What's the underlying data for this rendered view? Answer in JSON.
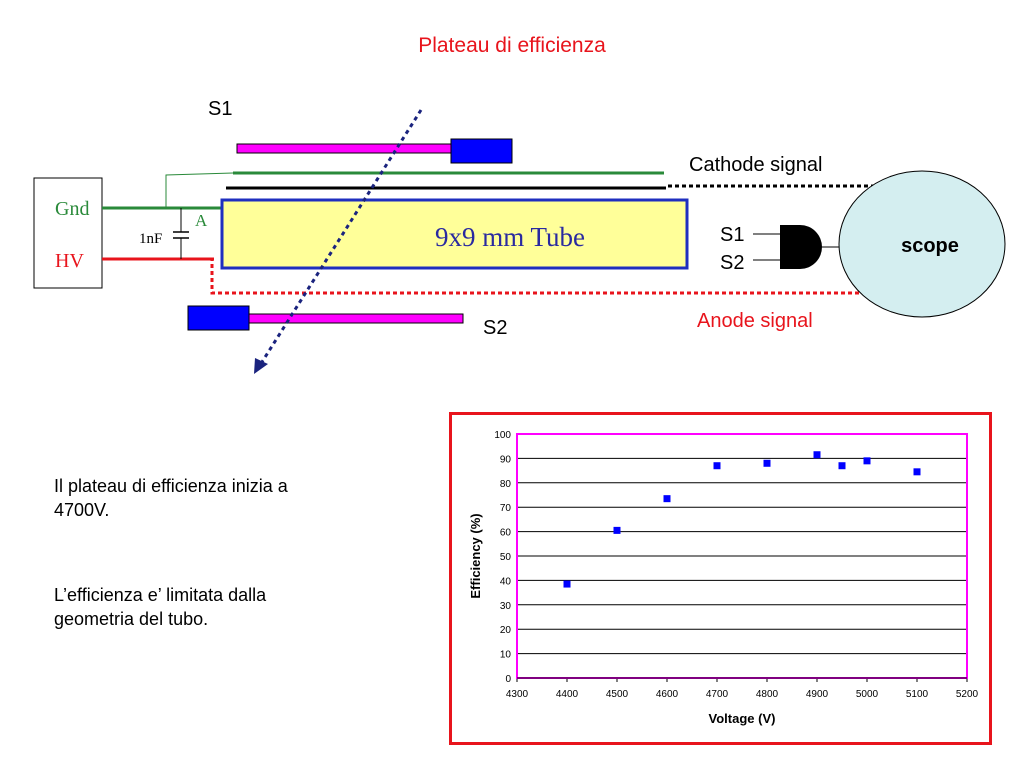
{
  "title": "Plateau di efficienza",
  "diagram": {
    "s1_top": "S1",
    "s2_bottom": "S2",
    "cathode_signal": "Cathode signal",
    "anode_signal": "Anode signal",
    "tube_label": "9x9 mm Tube",
    "gnd": "Gnd",
    "hv": "HV",
    "capacitor": "1nF",
    "anode_point": "A",
    "gate_in1": "S1",
    "gate_in2": "S2",
    "scope": "scope",
    "colors": {
      "title_red": "#e8141c",
      "scintillator": "#ff00ff",
      "pmt": "#0000ff",
      "tube_fill": "#ffff99",
      "tube_border": "#1f2fbf",
      "gnd_line": "#2a8a3a",
      "hv_line": "#e8141c",
      "scope_fill": "#d4eef0",
      "beam": "#1a237e"
    }
  },
  "notes": {
    "line1": "Il plateau di efficienza inizia a",
    "line2": "4700V.",
    "line3": "L’efficienza e’ limitata dalla",
    "line4": "geometria del tubo."
  },
  "chart_data": {
    "type": "scatter",
    "xlabel": "Voltage (V)",
    "ylabel": "Efficiency (%)",
    "xlim": [
      4300,
      5200
    ],
    "ylim": [
      0,
      100
    ],
    "xticks": [
      4300,
      4400,
      4500,
      4600,
      4700,
      4800,
      4900,
      5000,
      5100,
      5200
    ],
    "yticks": [
      0,
      10,
      20,
      30,
      40,
      50,
      60,
      70,
      80,
      90,
      100
    ],
    "grid": "horizontal",
    "plot_border_color": "#ff00ff",
    "marker_color": "#0000ff",
    "points": [
      {
        "x": 4400,
        "y": 38.5
      },
      {
        "x": 4500,
        "y": 60.5
      },
      {
        "x": 4600,
        "y": 73.5
      },
      {
        "x": 4700,
        "y": 87.0
      },
      {
        "x": 4800,
        "y": 88.0
      },
      {
        "x": 4900,
        "y": 91.5
      },
      {
        "x": 4950,
        "y": 87.0
      },
      {
        "x": 5000,
        "y": 89.0
      },
      {
        "x": 5100,
        "y": 84.5
      }
    ]
  }
}
